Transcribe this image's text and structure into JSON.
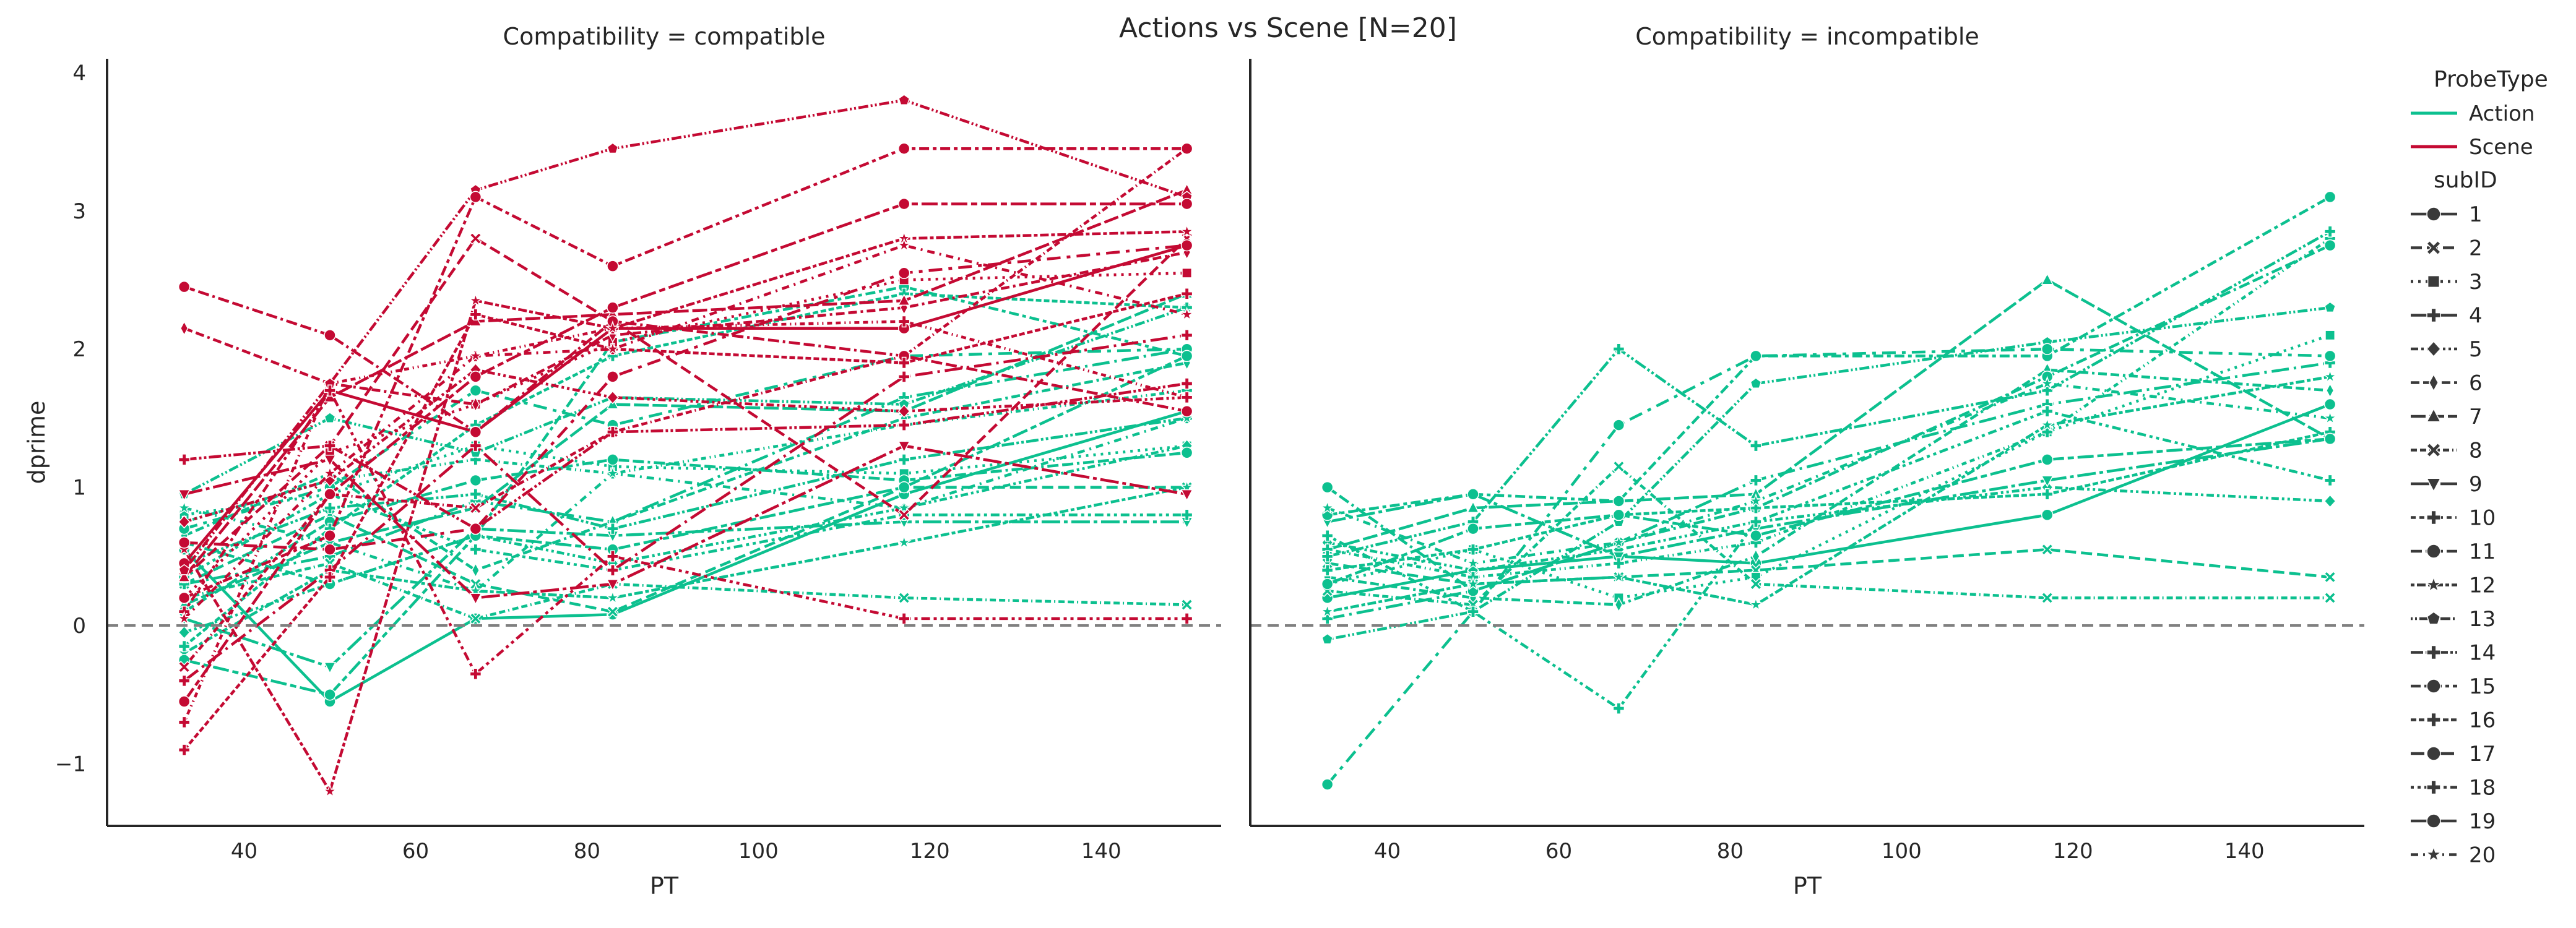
{
  "chart_data": {
    "type": "line",
    "title": "Actions vs Scene [N=20]",
    "xlabel": "PT",
    "ylabel": "dprime",
    "xlim": [
      24,
      154
    ],
    "ylim": [
      -1.45,
      4.1
    ],
    "x_ticks": [
      40,
      60,
      80,
      100,
      120,
      140
    ],
    "y_ticks": [
      -1,
      0,
      1,
      2,
      3,
      4
    ],
    "y_tick_labels": [
      "−1",
      "0",
      "1",
      "2",
      "3",
      "4"
    ],
    "reference_line": 0,
    "x": [
      33,
      50,
      67,
      83,
      117,
      150
    ],
    "hue_legend_title": "ProbeType",
    "style_legend_title": "subID",
    "colors": {
      "Action": "#0cc08f",
      "Scene": "#c40a33"
    },
    "probe_types": [
      "Action",
      "Scene"
    ],
    "subjects": [
      "1",
      "2",
      "3",
      "4",
      "5",
      "6",
      "7",
      "8",
      "9",
      "10",
      "11",
      "12",
      "13",
      "14",
      "15",
      "16",
      "17",
      "18",
      "19",
      "20"
    ],
    "panels": [
      {
        "title": "Compatibility = compatible",
        "series": [
          {
            "probe": "Action",
            "sub": "1",
            "values": [
              0.55,
              -0.55,
              0.05,
              0.08,
              0.95,
              1.55
            ]
          },
          {
            "probe": "Action",
            "sub": "2",
            "values": [
              0.3,
              0.8,
              0.3,
              0.1,
              1.0,
              1.0
            ]
          },
          {
            "probe": "Action",
            "sub": "3",
            "values": [
              0.8,
              0.95,
              1.3,
              1.15,
              1.1,
              1.3
            ]
          },
          {
            "probe": "Action",
            "sub": "4",
            "values": [
              0.3,
              0.5,
              0.9,
              0.75,
              1.65,
              2.0
            ]
          },
          {
            "probe": "Action",
            "sub": "5",
            "values": [
              -0.05,
              0.3,
              0.65,
              0.45,
              0.85,
              1.3
            ]
          },
          {
            "probe": "Action",
            "sub": "6",
            "values": [
              0.65,
              1.1,
              0.4,
              0.75,
              1.5,
              1.9
            ]
          },
          {
            "probe": "Action",
            "sub": "7",
            "values": [
              0.15,
              0.6,
              0.85,
              1.6,
              1.55,
              2.4
            ]
          },
          {
            "probe": "Action",
            "sub": "8",
            "values": [
              0.2,
              0.45,
              0.05,
              0.3,
              0.2,
              0.15
            ]
          },
          {
            "probe": "Action",
            "sub": "9",
            "values": [
              0.05,
              -0.3,
              0.7,
              0.65,
              0.75,
              0.75
            ]
          },
          {
            "probe": "Action",
            "sub": "10",
            "values": [
              0.75,
              1.05,
              1.2,
              1.1,
              1.45,
              1.7
            ]
          },
          {
            "probe": "Action",
            "sub": "11",
            "values": [
              0.1,
              0.75,
              1.05,
              1.2,
              1.05,
              1.25
            ]
          },
          {
            "probe": "Action",
            "sub": "12",
            "values": [
              -0.2,
              0.4,
              0.25,
              0.2,
              0.6,
              1.0
            ]
          },
          {
            "probe": "Action",
            "sub": "13",
            "values": [
              0.95,
              1.5,
              1.25,
              1.65,
              1.6,
              2.3
            ]
          },
          {
            "probe": "Action",
            "sub": "14",
            "values": [
              0.45,
              0.85,
              0.95,
              0.7,
              1.2,
              1.5
            ]
          },
          {
            "probe": "Action",
            "sub": "15",
            "values": [
              0.6,
              0.3,
              0.65,
              2.05,
              2.45,
              1.95
            ]
          },
          {
            "probe": "Action",
            "sub": "16",
            "values": [
              -0.15,
              0.7,
              1.45,
              1.95,
              2.4,
              2.3
            ]
          },
          {
            "probe": "Action",
            "sub": "17",
            "values": [
              0.7,
              1.0,
              1.7,
              1.45,
              1.95,
              2.0
            ]
          },
          {
            "probe": "Action",
            "sub": "18",
            "values": [
              0.35,
              0.95,
              0.55,
              0.4,
              0.8,
              0.8
            ]
          },
          {
            "probe": "Action",
            "sub": "19",
            "values": [
              -0.25,
              -0.5,
              0.65,
              0.55,
              1.0,
              1.95
            ]
          },
          {
            "probe": "Action",
            "sub": "20",
            "values": [
              0.85,
              0.6,
              0.25,
              1.1,
              0.85,
              1.5
            ]
          },
          {
            "probe": "Scene",
            "sub": "1",
            "values": [
              0.45,
              1.7,
              1.4,
              2.15,
              2.15,
              2.75
            ]
          },
          {
            "probe": "Scene",
            "sub": "2",
            "values": [
              0.35,
              1.3,
              2.8,
              2.2,
              0.8,
              2.8
            ]
          },
          {
            "probe": "Scene",
            "sub": "3",
            "values": [
              0.2,
              1.25,
              1.6,
              2.05,
              2.5,
              2.55
            ]
          },
          {
            "probe": "Scene",
            "sub": "4",
            "values": [
              -0.4,
              0.4,
              1.3,
              0.4,
              1.8,
              2.1
            ]
          },
          {
            "probe": "Scene",
            "sub": "5",
            "values": [
              0.75,
              1.05,
              1.85,
              1.65,
              1.55,
              1.65
            ]
          },
          {
            "probe": "Scene",
            "sub": "6",
            "values": [
              2.15,
              1.75,
              1.6,
              2.1,
              2.3,
              2.7
            ]
          },
          {
            "probe": "Scene",
            "sub": "7",
            "values": [
              0.35,
              1.65,
              2.2,
              2.25,
              2.35,
              3.15
            ]
          },
          {
            "probe": "Scene",
            "sub": "8",
            "values": [
              -0.3,
              0.95,
              0.85,
              1.4,
              1.95,
              3.45
            ]
          },
          {
            "probe": "Scene",
            "sub": "9",
            "values": [
              0.95,
              1.2,
              0.2,
              0.3,
              1.3,
              0.95
            ]
          },
          {
            "probe": "Scene",
            "sub": "10",
            "values": [
              -0.7,
              1.75,
              1.95,
              2.15,
              2.2,
              1.65
            ]
          },
          {
            "probe": "Scene",
            "sub": "11",
            "values": [
              2.45,
              2.1,
              1.4,
              2.2,
              1.95,
              1.55
            ]
          },
          {
            "probe": "Scene",
            "sub": "12",
            "values": [
              0.55,
              -1.2,
              2.35,
              2.15,
              2.8,
              2.85
            ]
          },
          {
            "probe": "Scene",
            "sub": "13",
            "values": [
              0.4,
              1.75,
              3.15,
              3.45,
              3.8,
              3.1
            ]
          },
          {
            "probe": "Scene",
            "sub": "14",
            "values": [
              1.2,
              1.3,
              0.7,
              1.4,
              1.45,
              1.75
            ]
          },
          {
            "probe": "Scene",
            "sub": "15",
            "values": [
              0.2,
              0.65,
              3.1,
              2.6,
              3.45,
              3.45
            ]
          },
          {
            "probe": "Scene",
            "sub": "16",
            "values": [
              -0.9,
              0.35,
              2.25,
              2.0,
              1.9,
              2.4
            ]
          },
          {
            "probe": "Scene",
            "sub": "17",
            "values": [
              0.6,
              0.55,
              0.7,
              1.8,
              2.55,
              2.75
            ]
          },
          {
            "probe": "Scene",
            "sub": "18",
            "values": [
              0.1,
              1.7,
              -0.35,
              0.5,
              0.05,
              0.05
            ]
          },
          {
            "probe": "Scene",
            "sub": "19",
            "values": [
              -0.55,
              0.95,
              1.8,
              2.3,
              3.05,
              3.05
            ]
          },
          {
            "probe": "Scene",
            "sub": "20",
            "values": [
              0.05,
              1.1,
              1.95,
              2.0,
              2.75,
              2.25
            ]
          }
        ]
      },
      {
        "title": "Compatibility = incompatible",
        "series": [
          {
            "probe": "Action",
            "sub": "1",
            "values": [
              0.2,
              0.4,
              0.5,
              0.45,
              0.8,
              1.6
            ]
          },
          {
            "probe": "Action",
            "sub": "2",
            "values": [
              0.45,
              0.3,
              0.35,
              0.4,
              0.55,
              0.35
            ]
          },
          {
            "probe": "Action",
            "sub": "3",
            "values": [
              0.3,
              0.55,
              0.2,
              0.35,
              1.4,
              2.1
            ]
          },
          {
            "probe": "Action",
            "sub": "4",
            "values": [
              0.05,
              0.25,
              0.6,
              1.05,
              1.6,
              1.9
            ]
          },
          {
            "probe": "Action",
            "sub": "5",
            "values": [
              0.6,
              0.4,
              0.55,
              0.75,
              1.0,
              0.9
            ]
          },
          {
            "probe": "Action",
            "sub": "6",
            "values": [
              0.35,
              0.2,
              0.15,
              0.5,
              1.85,
              1.7
            ]
          },
          {
            "probe": "Action",
            "sub": "7",
            "values": [
              0.55,
              0.85,
              0.9,
              0.95,
              2.5,
              1.35
            ]
          },
          {
            "probe": "Action",
            "sub": "8",
            "values": [
              0.25,
              0.15,
              1.15,
              0.3,
              0.2,
              0.2
            ]
          },
          {
            "probe": "Action",
            "sub": "9",
            "values": [
              0.75,
              0.95,
              0.5,
              0.7,
              1.05,
              1.35
            ]
          },
          {
            "probe": "Action",
            "sub": "10",
            "values": [
              0.55,
              0.35,
              0.45,
              0.6,
              1.4,
              2.8
            ]
          },
          {
            "probe": "Action",
            "sub": "11",
            "values": [
              1.0,
              0.25,
              0.6,
              0.85,
              1.8,
              2.75
            ]
          },
          {
            "probe": "Action",
            "sub": "12",
            "values": [
              0.1,
              0.3,
              0.35,
              0.15,
              1.45,
              1.8
            ]
          },
          {
            "probe": "Action",
            "sub": "13",
            "values": [
              -0.1,
              0.1,
              0.75,
              1.75,
              2.05,
              2.3
            ]
          },
          {
            "probe": "Action",
            "sub": "14",
            "values": [
              0.5,
              0.75,
              2.0,
              1.3,
              1.7,
              2.85
            ]
          },
          {
            "probe": "Action",
            "sub": "15",
            "values": [
              0.8,
              0.95,
              0.9,
              1.95,
              1.95,
              3.1
            ]
          },
          {
            "probe": "Action",
            "sub": "16",
            "values": [
              0.4,
              0.55,
              0.8,
              0.85,
              0.95,
              1.4
            ]
          },
          {
            "probe": "Action",
            "sub": "17",
            "values": [
              -1.15,
              0.1,
              1.45,
              1.95,
              2.0,
              1.95
            ]
          },
          {
            "probe": "Action",
            "sub": "18",
            "values": [
              0.65,
              0.1,
              -0.6,
              0.75,
              1.55,
              1.05
            ]
          },
          {
            "probe": "Action",
            "sub": "19",
            "values": [
              0.3,
              0.7,
              0.8,
              0.65,
              1.2,
              1.35
            ]
          },
          {
            "probe": "Action",
            "sub": "20",
            "values": [
              0.85,
              0.45,
              0.6,
              0.9,
              1.75,
              1.5
            ]
          }
        ]
      }
    ]
  }
}
